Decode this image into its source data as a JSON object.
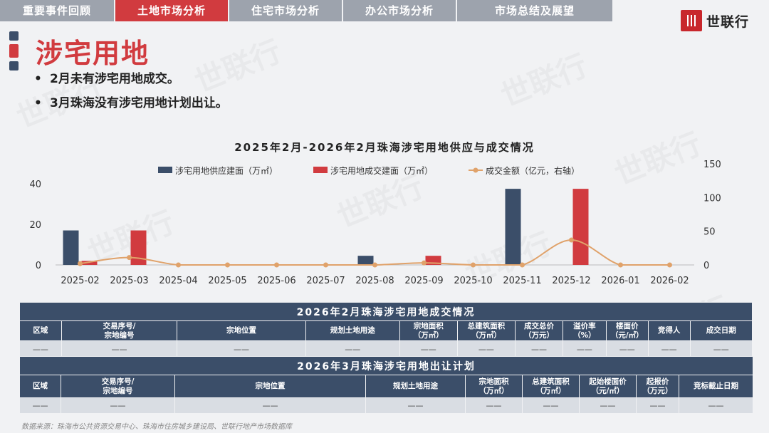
{
  "tabs": [
    {
      "label": "重要事件回顾",
      "active": false
    },
    {
      "label": "土地市场分析",
      "active": true
    },
    {
      "label": "住宅市场分析",
      "active": false
    },
    {
      "label": "办公市场分析",
      "active": false
    },
    {
      "label": "市场总结及展望",
      "active": false
    }
  ],
  "brand": {
    "name": "世联行",
    "icon": "shilian-logo-icon",
    "color": "#c8272c"
  },
  "colors": {
    "accent": "#d13b3f",
    "navy": "#3b4e69",
    "line": "#e0a26a",
    "tab_inactive": "#9da3ad"
  },
  "page": {
    "title": "涉宅用地",
    "bullets": [
      "2月未有涉宅用地成交。",
      "3月珠海没有涉宅用地计划出让。"
    ]
  },
  "chart_data": {
    "type": "bar",
    "title": "2025年2月-2026年2月珠海涉宅用地供应与成交情况",
    "categories": [
      "2025-02",
      "2025-03",
      "2025-04",
      "2025-05",
      "2025-06",
      "2025-07",
      "2025-08",
      "2025-09",
      "2025-10",
      "2025-11",
      "2025-12",
      "2026-01",
      "2026-02"
    ],
    "series": [
      {
        "name": "涉宅用地供应建面（万㎡）",
        "kind": "bar",
        "axis": "left",
        "color": "#3b4e69",
        "values": [
          17,
          0,
          0,
          0,
          0,
          0,
          4.5,
          0,
          0,
          37.5,
          0,
          0,
          0
        ]
      },
      {
        "name": "涉宅用地成交建面（万㎡）",
        "kind": "bar",
        "axis": "left",
        "color": "#d13b3f",
        "values": [
          2,
          17,
          0,
          0,
          0,
          0,
          0,
          4.5,
          0,
          0,
          37.5,
          0,
          0
        ]
      },
      {
        "name": "成交金额（亿元，右轴）",
        "kind": "line",
        "axis": "right",
        "color": "#e0a26a",
        "values": [
          2,
          11,
          0,
          0,
          0,
          0,
          0,
          3,
          0,
          0,
          37,
          0,
          0
        ]
      }
    ],
    "ylim": [
      0,
      40
    ],
    "yticks": [
      0,
      20,
      40
    ],
    "y2lim": [
      0,
      150
    ],
    "y2ticks": [
      0,
      50,
      100,
      150
    ],
    "legend": "top-center",
    "grid": false
  },
  "table1": {
    "caption": "2026年2月珠海涉宅用地成交情况",
    "headers": [
      "区域",
      "交易序号/\n宗地编号",
      "宗地位置",
      "规划土地用途",
      "宗地面积\n（万㎡）",
      "总建筑面积\n（万㎡）",
      "成交总价\n（万元）",
      "溢价率\n（%）",
      "楼面价\n（元/㎡）",
      "竞得人",
      "成交日期"
    ],
    "rows": [
      [
        "——",
        "——",
        "——",
        "——",
        "——",
        "——",
        "——",
        "——",
        "——",
        "——",
        "——"
      ]
    ]
  },
  "table2": {
    "caption": "2026年3月珠海涉宅用地出让计划",
    "headers": [
      "区域",
      "交易序号/\n宗地编号",
      "宗地位置",
      "规划土地用途",
      "宗地面积\n（万㎡）",
      "总建筑面积\n（万㎡）",
      "起始楼面价\n（元/㎡）",
      "起报价\n（万元）",
      "竞标截止日期"
    ],
    "rows": [
      [
        "——",
        "——",
        "——",
        "——",
        "——",
        "——",
        "——",
        "——",
        "——"
      ]
    ]
  },
  "footer": {
    "source": "数据来源：珠海市公共资源交易中心、珠海市住房城乡建设局、世联行地产市场数据库"
  },
  "watermark": "世联行"
}
